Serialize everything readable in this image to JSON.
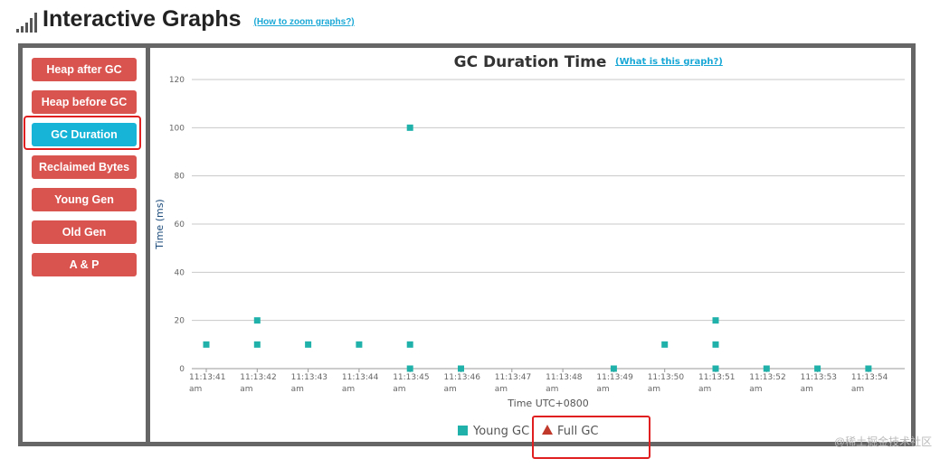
{
  "header": {
    "title": "Interactive Graphs",
    "zoom_link": "(How to zoom graphs?)"
  },
  "sidebar": {
    "buttons": [
      {
        "label": "Heap after GC",
        "active": false
      },
      {
        "label": "Heap before GC",
        "active": false
      },
      {
        "label": "GC Duration",
        "active": true
      },
      {
        "label": "Reclaimed Bytes",
        "active": false
      },
      {
        "label": "Young Gen",
        "active": false
      },
      {
        "label": "Old Gen",
        "active": false
      },
      {
        "label": "A & P",
        "active": false
      }
    ]
  },
  "chart_data": {
    "type": "scatter",
    "title": "GC Duration Time",
    "help_link": "(What is this graph?)",
    "xlabel": "Time UTC+0800",
    "ylabel": "Time (ms)",
    "ylim": [
      0,
      120
    ],
    "yticks": [
      "0",
      "20",
      "40",
      "60",
      "80",
      "100",
      "120"
    ],
    "xticks": [
      [
        "11:13:41",
        "am"
      ],
      [
        "11:13:42",
        "am"
      ],
      [
        "11:13:43",
        "am"
      ],
      [
        "11:13:44",
        "am"
      ],
      [
        "11:13:45",
        "am"
      ],
      [
        "11:13:46",
        "am"
      ],
      [
        "11:13:47",
        "am"
      ],
      [
        "11:13:48",
        "am"
      ],
      [
        "11:13:49",
        "am"
      ],
      [
        "11:13:50",
        "am"
      ],
      [
        "11:13:51",
        "am"
      ],
      [
        "11:13:52",
        "am"
      ],
      [
        "11:13:53",
        "am"
      ],
      [
        "11:13:54",
        "am"
      ]
    ],
    "grid": true,
    "legend_position": "bottom-center",
    "series": [
      {
        "name": "Young GC",
        "color": "#20b2aa",
        "marker": "square",
        "points": [
          [
            "11:13:41",
            10
          ],
          [
            "11:13:42",
            20
          ],
          [
            "11:13:42",
            10
          ],
          [
            "11:13:43",
            10
          ],
          [
            "11:13:44",
            10
          ],
          [
            "11:13:45",
            100
          ],
          [
            "11:13:45",
            10
          ],
          [
            "11:13:45",
            0
          ],
          [
            "11:13:46",
            0
          ],
          [
            "11:13:49",
            0
          ],
          [
            "11:13:50",
            10
          ],
          [
            "11:13:51",
            20
          ],
          [
            "11:13:51",
            10
          ],
          [
            "11:13:51",
            0
          ],
          [
            "11:13:52",
            0
          ],
          [
            "11:13:53",
            0
          ],
          [
            "11:13:54",
            0
          ]
        ]
      },
      {
        "name": "Full GC",
        "color": "#c0392b",
        "marker": "triangle",
        "points": []
      }
    ]
  },
  "watermark": "@稀土掘金技术社区"
}
